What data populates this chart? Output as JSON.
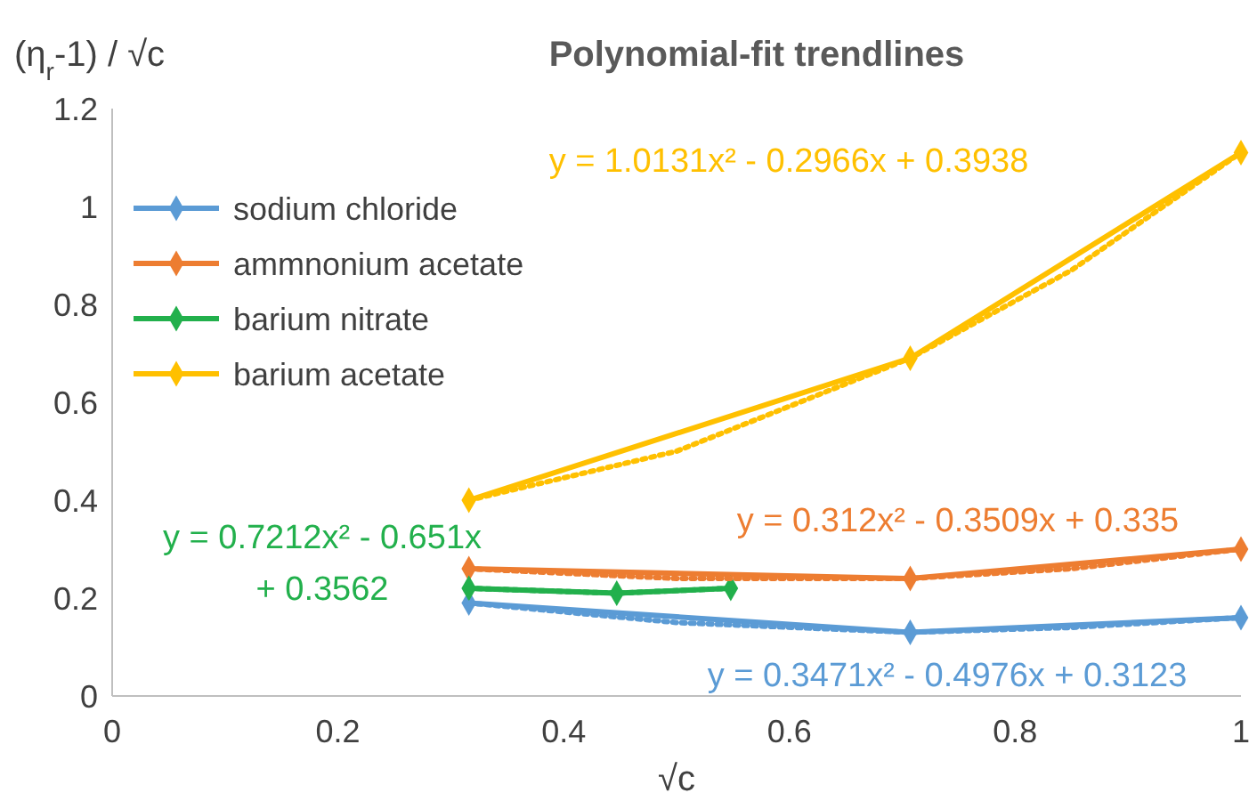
{
  "chart_data": {
    "type": "line",
    "title": "Polynomial-fit trendlines",
    "xlabel": "√c",
    "ylabel": "(η$_{r}$-1) / √c",
    "xlim": [
      0,
      1
    ],
    "xticks": [
      0,
      0.2,
      0.4,
      0.6,
      0.8,
      1
    ],
    "ylim": [
      0,
      1.2
    ],
    "yticks": [
      0,
      0.2,
      0.4,
      0.6,
      0.8,
      1,
      1.2
    ],
    "grid": false,
    "legend": "top left",
    "marker": "diamond",
    "series": [
      {
        "name": "sodium chloride",
        "color": "#5b9bd5",
        "x": [
          0.316,
          0.707,
          1
        ],
        "values": [
          0.19,
          0.13,
          0.16
        ]
      },
      {
        "name": "ammnonium acetate",
        "color": "#ed7d31",
        "x": [
          0.316,
          0.707,
          1
        ],
        "values": [
          0.26,
          0.24,
          0.3
        ]
      },
      {
        "name": "barium nitrate",
        "color": "#22b04c",
        "x": [
          0.316,
          0.447,
          0.548
        ],
        "values": [
          0.22,
          0.21,
          0.22
        ]
      },
      {
        "name": "barium acetate",
        "color": "#ffc000",
        "x": [
          0.316,
          0.707,
          1
        ],
        "values": [
          0.4,
          0.69,
          1.11
        ]
      },
      {
        "type": "line",
        "line_style": "dotted",
        "marker": "none",
        "color": "#5b9bd5",
        "x": [
          0.316,
          0.5,
          0.707,
          0.85,
          1
        ],
        "values": [
          0.19,
          0.15,
          0.13,
          0.14,
          0.16
        ]
      },
      {
        "type": "line",
        "line_style": "dotted",
        "marker": "none",
        "color": "#ed7d31",
        "x": [
          0.316,
          0.5,
          0.707,
          0.85,
          1
        ],
        "values": [
          0.26,
          0.24,
          0.24,
          0.26,
          0.3
        ]
      },
      {
        "type": "line",
        "line_style": "dotted",
        "marker": "none",
        "color": "#22b04c",
        "x": [
          0.316,
          0.447,
          0.548
        ],
        "values": [
          0.22,
          0.21,
          0.22
        ]
      },
      {
        "type": "line",
        "line_style": "dotted",
        "marker": "none",
        "color": "#ffc000",
        "x": [
          0.316,
          0.5,
          0.707,
          0.85,
          1
        ],
        "values": [
          0.4,
          0.5,
          0.69,
          0.87,
          1.11
        ]
      }
    ],
    "annotations": [
      "y = 0.3471x² - 0.4976x + 0.3123",
      "y = 0.312x² - 0.3509x + 0.335",
      "y = 0.7212x² - 0.651x\n+ 0.3562",
      "y = 1.0131x² - 0.2966x + 0.3938"
    ]
  }
}
